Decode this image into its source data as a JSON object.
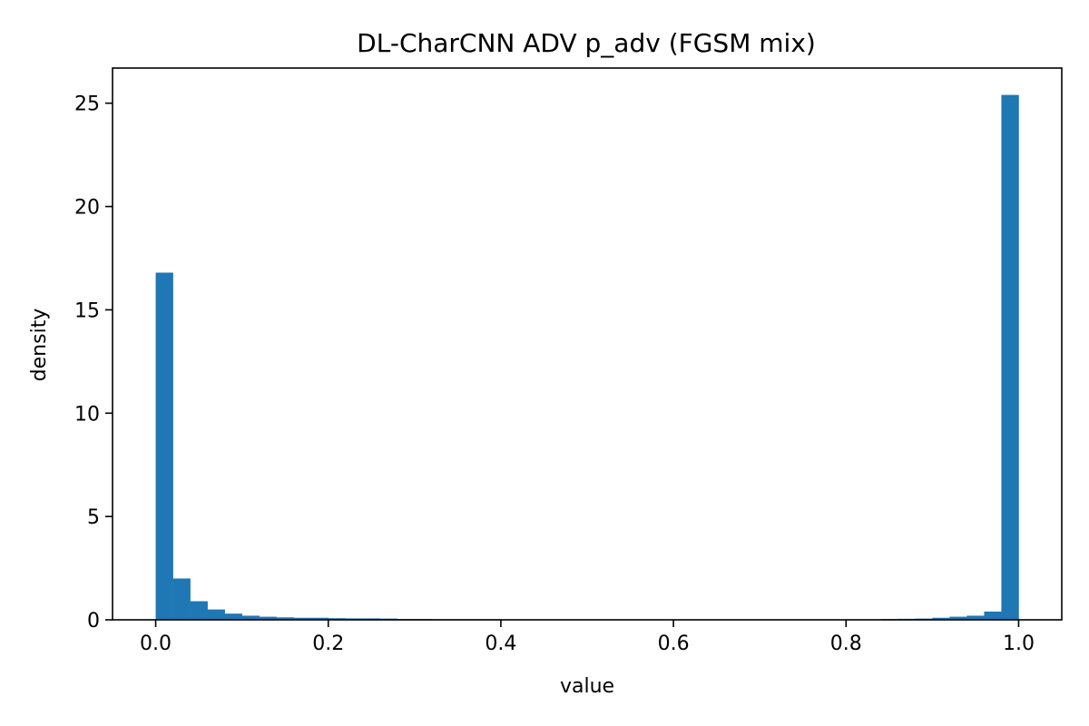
{
  "chart_data": {
    "type": "bar",
    "title": "DL-CharCNN ADV p_adv (FGSM mix)",
    "xlabel": "value",
    "ylabel": "density",
    "xlim": [
      -0.05,
      1.05
    ],
    "ylim": [
      0,
      26.7
    ],
    "xticks": [
      0.0,
      0.2,
      0.4,
      0.6,
      0.8,
      1.0
    ],
    "xtick_labels": [
      "0.0",
      "0.2",
      "0.4",
      "0.6",
      "0.8",
      "1.0"
    ],
    "yticks": [
      0,
      5,
      10,
      15,
      20,
      25
    ],
    "ytick_labels": [
      "0",
      "5",
      "10",
      "15",
      "20",
      "25"
    ],
    "bin_width": 0.02,
    "bin_start": 0.0,
    "values": [
      16.8,
      2.0,
      0.9,
      0.5,
      0.3,
      0.2,
      0.15,
      0.12,
      0.1,
      0.1,
      0.08,
      0.07,
      0.07,
      0.06,
      0.04,
      0.04,
      0.03,
      0.03,
      0.03,
      0.03,
      0.02,
      0.02,
      0.02,
      0.02,
      0.02,
      0.02,
      0.02,
      0.02,
      0.02,
      0.02,
      0.02,
      0.02,
      0.02,
      0.02,
      0.02,
      0.02,
      0.02,
      0.02,
      0.02,
      0.02,
      0.02,
      0.02,
      0.04,
      0.05,
      0.06,
      0.1,
      0.15,
      0.2,
      0.4,
      25.4
    ],
    "bar_color": "#1f77b4",
    "grid": false,
    "legend": "none"
  }
}
